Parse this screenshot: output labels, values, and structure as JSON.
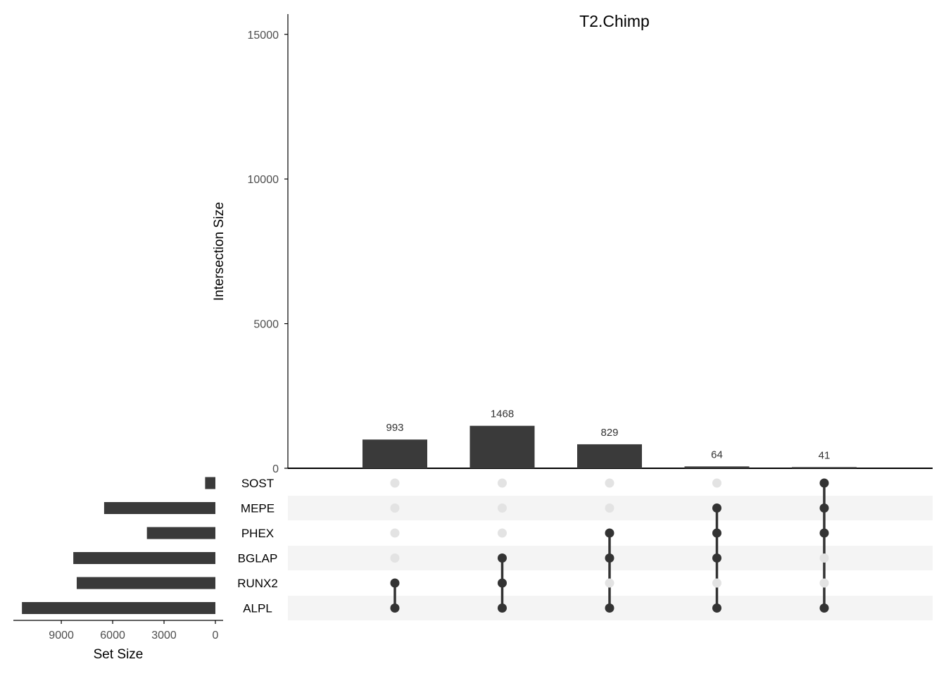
{
  "colors": {
    "bar": "#3a3a3a",
    "dot_active": "#333333",
    "dot_inactive": "#e3e3e3",
    "stripe": "#f4f4f4",
    "axis": "#000000",
    "tick_label": "#4d4d4d"
  },
  "chart_data": {
    "type": "bar",
    "subtype": "upset",
    "title": "T2.Chimp",
    "ylabel": "Intersection Size",
    "ylim": [
      0,
      15700
    ],
    "yticks": [
      0,
      5000,
      10000,
      15000
    ],
    "intersections": [
      {
        "value": 993,
        "label": "993",
        "sets": [
          "RUNX2",
          "ALPL"
        ]
      },
      {
        "value": 1468,
        "label": "1468",
        "sets": [
          "BGLAP",
          "RUNX2",
          "ALPL"
        ]
      },
      {
        "value": 829,
        "label": "829",
        "sets": [
          "PHEX",
          "BGLAP",
          "ALPL"
        ]
      },
      {
        "value": 64,
        "label": "64",
        "sets": [
          "MEPE",
          "PHEX",
          "BGLAP",
          "ALPL"
        ]
      },
      {
        "value": 41,
        "label": "41",
        "sets": [
          "SOST",
          "MEPE",
          "PHEX",
          "ALPL"
        ]
      }
    ],
    "sets": [
      {
        "name": "SOST",
        "size": 600
      },
      {
        "name": "MEPE",
        "size": 6500
      },
      {
        "name": "PHEX",
        "size": 4000
      },
      {
        "name": "BGLAP",
        "size": 8300
      },
      {
        "name": "RUNX2",
        "size": 8100
      },
      {
        "name": "ALPL",
        "size": 11300
      }
    ],
    "set_size": {
      "xlabel": "Set Size",
      "xticks": [
        9000,
        6000,
        3000,
        0
      ],
      "xlim": [
        0,
        11800
      ]
    },
    "grid": false
  }
}
